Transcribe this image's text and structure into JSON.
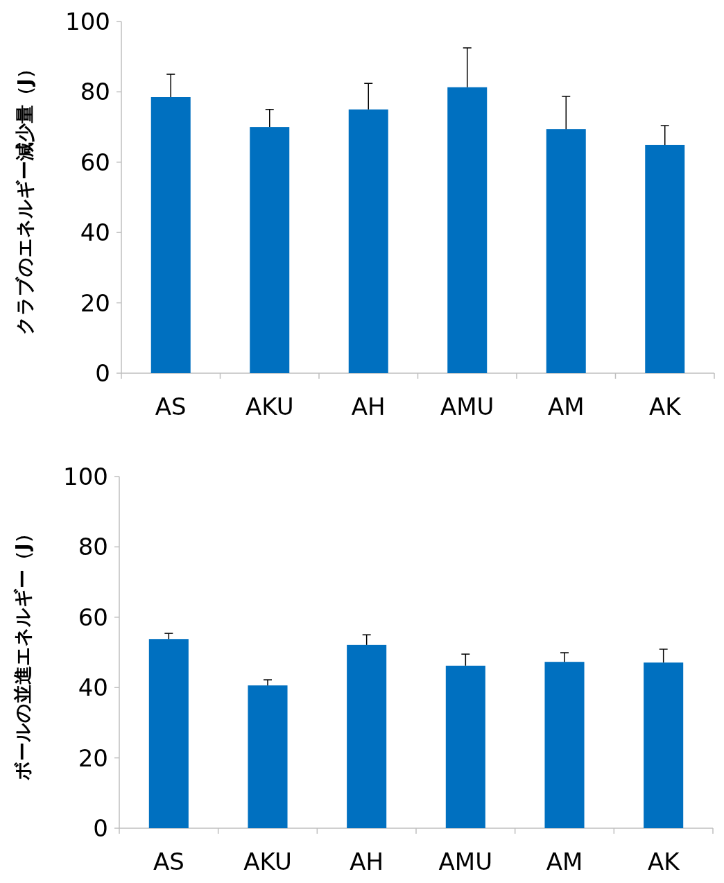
{
  "chart_data": [
    {
      "type": "bar",
      "ylabel": "クラブのエネルギー減少量（J）",
      "categories": [
        "AS",
        "AKU",
        "AH",
        "AMU",
        "AM",
        "AK"
      ],
      "color": "#0070c0",
      "values": [
        78.5,
        70.0,
        75.0,
        81.3,
        69.4,
        64.9
      ],
      "errors": [
        [
          78.5,
          85.0
        ],
        [
          70.0,
          75.0
        ],
        [
          75.0,
          82.4
        ],
        [
          81.3,
          92.5
        ],
        [
          69.4,
          78.7
        ],
        [
          64.9,
          70.4
        ]
      ],
      "ylim": [
        0,
        100
      ],
      "yticks": [
        0,
        20,
        40,
        60,
        80,
        100
      ]
    },
    {
      "type": "bar",
      "ylabel": "ボールの並進エネルギー（J）",
      "categories": [
        "AS",
        "AKU",
        "AH",
        "AMU",
        "AM",
        "AK"
      ],
      "color": "#0070c0",
      "values": [
        53.8,
        40.6,
        52.1,
        46.2,
        47.3,
        47.1
      ],
      "errors": [
        [
          53.8,
          55.4
        ],
        [
          40.6,
          42.2
        ],
        [
          52.1,
          55.0
        ],
        [
          46.2,
          49.5
        ],
        [
          47.3,
          49.9
        ],
        [
          47.1,
          50.9
        ]
      ],
      "ylim": [
        0,
        100
      ],
      "yticks": [
        0,
        20,
        40,
        60,
        80,
        100
      ]
    }
  ]
}
